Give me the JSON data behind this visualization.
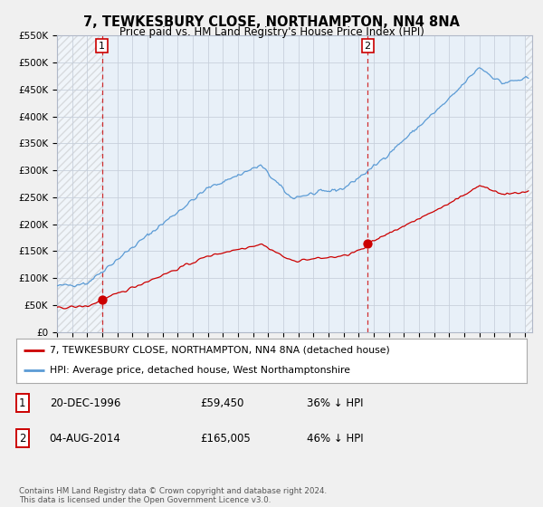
{
  "title": "7, TEWKESBURY CLOSE, NORTHAMPTON, NN4 8NA",
  "subtitle": "Price paid vs. HM Land Registry's House Price Index (HPI)",
  "legend_line1": "7, TEWKESBURY CLOSE, NORTHAMPTON, NN4 8NA (detached house)",
  "legend_line2": "HPI: Average price, detached house, West Northamptonshire",
  "annotation1_date": "20-DEC-1996",
  "annotation1_price": "£59,450",
  "annotation1_hpi": "36% ↓ HPI",
  "annotation2_date": "04-AUG-2014",
  "annotation2_price": "£165,005",
  "annotation2_hpi": "46% ↓ HPI",
  "footer": "Contains HM Land Registry data © Crown copyright and database right 2024.\nThis data is licensed under the Open Government Licence v3.0.",
  "sale1_year": 1996.97,
  "sale1_price": 59450,
  "sale2_year": 2014.59,
  "sale2_price": 165005,
  "hpi_color": "#5b9bd5",
  "price_color": "#cc0000",
  "vline_color": "#cc0000",
  "bg_color": "#e8f0f8",
  "outer_bg": "#f0f0f0",
  "plot_bg_color": "#e8f0f8",
  "ylim": [
    0,
    550000
  ],
  "xlim_start": 1994.0,
  "xlim_end": 2025.5
}
